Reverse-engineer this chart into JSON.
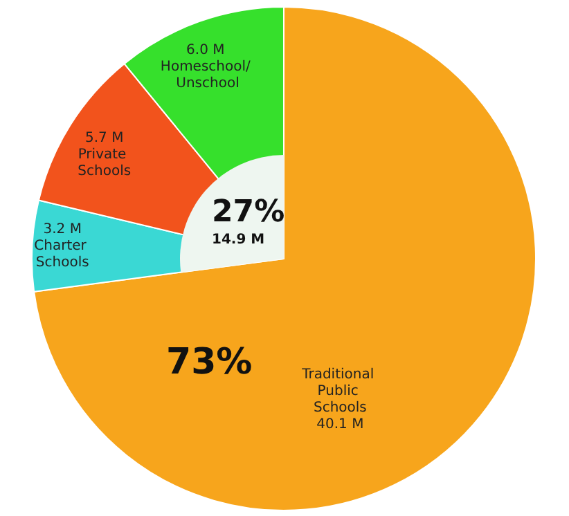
{
  "chart_data": {
    "type": "pie",
    "categories": [
      "Traditional Public Schools",
      "Charter Schools",
      "Private Schools",
      "Homeschool/ Unschool"
    ],
    "values": [
      40.1,
      3.2,
      5.7,
      6.0
    ],
    "value_labels": [
      "40.1 M",
      "3.2 M",
      "5.7 M",
      "6.0 M"
    ],
    "colors": [
      "#f7a51c",
      "#3ad8d4",
      "#f2531c",
      "#36e02c"
    ],
    "annotations": [
      "73%",
      "27%",
      "14.9 M"
    ],
    "legend": false
  }
}
